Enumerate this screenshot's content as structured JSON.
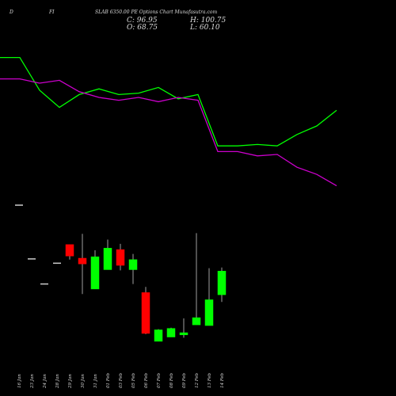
{
  "header": {
    "left": "D",
    "mid": "FI",
    "title": "SLAB 6350.00 PE Options Chart Munafasutra.com",
    "close_label": "C: 96.95",
    "high_label": "H: 100.75",
    "open_label": "O: 68.75",
    "low_label": "L: 60.10"
  },
  "colors": {
    "background": "#000000",
    "up": "#00ff00",
    "down": "#ff0000",
    "line_green": "#00ff00",
    "line_magenta": "#cc00cc",
    "wick": "#a0a0a0",
    "text": "#dcdcdc"
  },
  "chart_data": [
    {
      "type": "line",
      "title": "",
      "series": [
        {
          "color": "#00ff00",
          "values": [
            0.93,
            0.93,
            0.7,
            0.58,
            0.67,
            0.71,
            0.67,
            0.68,
            0.72,
            0.64,
            0.67,
            0.31,
            0.31,
            0.32,
            0.31,
            0.39,
            0.45,
            0.56
          ]
        },
        {
          "color": "#cc00cc",
          "values": [
            0.78,
            0.78,
            0.75,
            0.77,
            0.69,
            0.65,
            0.63,
            0.65,
            0.62,
            0.65,
            0.63,
            0.27,
            0.27,
            0.24,
            0.25,
            0.16,
            0.11,
            0.03
          ]
        }
      ]
    },
    {
      "type": "candlestick",
      "title": "",
      "categories": [
        "16 Jan",
        "23 Jan",
        "24 Jan",
        "28 Jan",
        "29 Jan",
        "30 Jan",
        "31 Jan",
        "01 Feb",
        "03 Feb",
        "05 Feb",
        "06 Feb",
        "07 Feb",
        "08 Feb",
        "09 Feb",
        "12 Feb",
        "13 Feb",
        "14 Feb"
      ],
      "candles": [
        {
          "open": 380,
          "high": 380,
          "low": 380,
          "close": 380
        },
        {
          "open": 305,
          "high": 305,
          "low": 305,
          "close": 305
        },
        {
          "open": 270,
          "high": 270,
          "low": 270,
          "close": 270
        },
        {
          "open": 299,
          "high": 299,
          "low": 299,
          "close": 299
        },
        {
          "open": 325,
          "high": 325,
          "low": 304,
          "close": 309
        },
        {
          "open": 306,
          "high": 340,
          "low": 256,
          "close": 298
        },
        {
          "open": 263,
          "high": 317,
          "low": 263,
          "close": 308
        },
        {
          "open": 290,
          "high": 332,
          "low": 290,
          "close": 320
        },
        {
          "open": 318,
          "high": 326,
          "low": 289,
          "close": 296
        },
        {
          "open": 290,
          "high": 312,
          "low": 270,
          "close": 304
        },
        {
          "open": 258,
          "high": 266,
          "low": 200,
          "close": 201
        },
        {
          "open": 190,
          "high": 207,
          "low": 190,
          "close": 206
        },
        {
          "open": 196,
          "high": 209,
          "low": 196,
          "close": 208
        },
        {
          "open": 199,
          "high": 222,
          "low": 195,
          "close": 202
        },
        {
          "open": 213,
          "high": 341,
          "low": 213,
          "close": 223
        },
        {
          "open": 212,
          "high": 292,
          "low": 212,
          "close": 248
        },
        {
          "open": 255,
          "high": 293,
          "low": 245,
          "close": 288
        }
      ]
    }
  ]
}
